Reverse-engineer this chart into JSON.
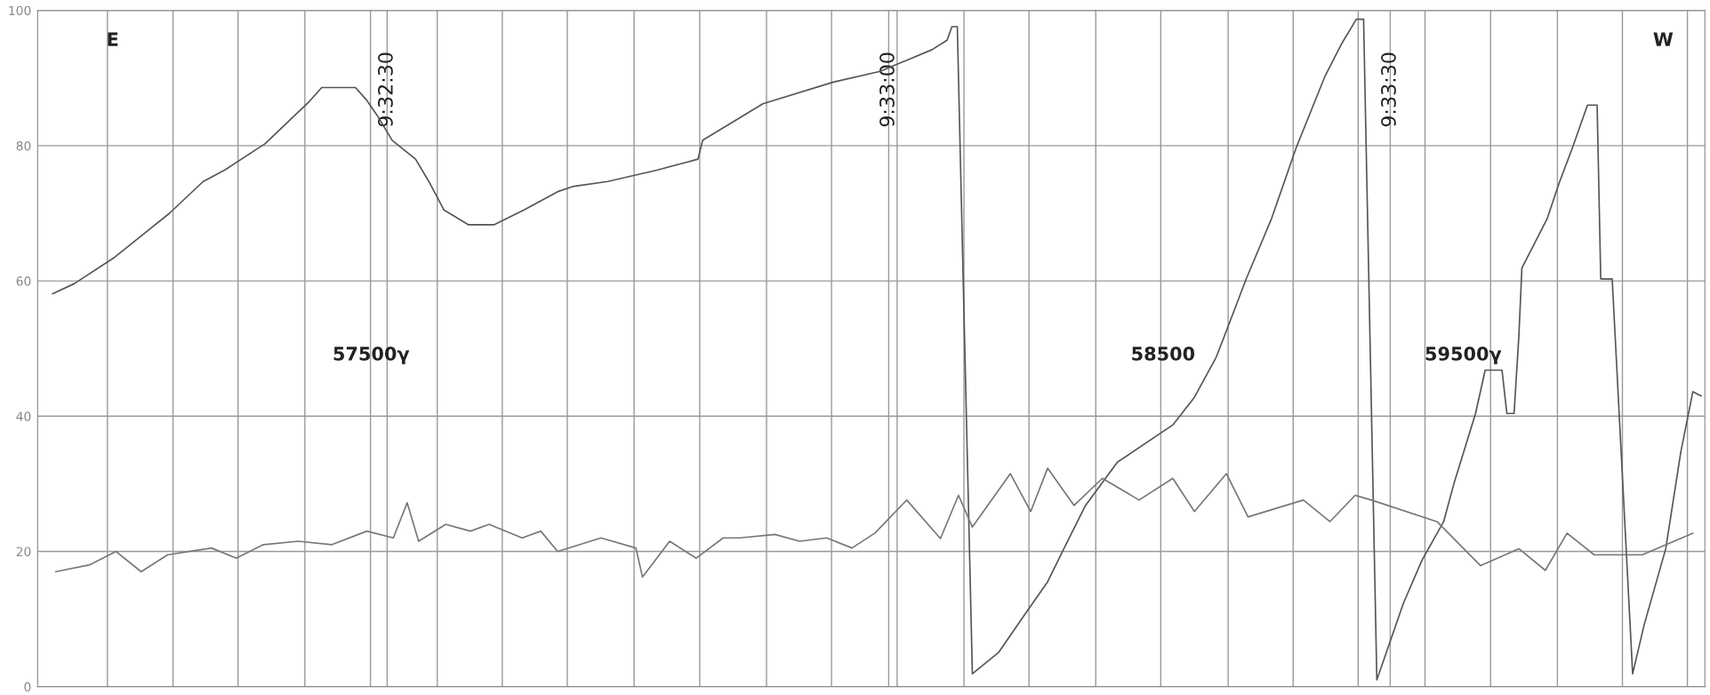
{
  "chart_data": {
    "type": "line",
    "xlim": [
      9.53586,
      9.56356
    ],
    "ylim": [
      0,
      100
    ],
    "xticks": [
      {
        "value": 9.53702,
        "label": null
      },
      {
        "value": 9.53811,
        "label": null
      },
      {
        "value": 9.53919,
        "label": null
      },
      {
        "value": 9.5403,
        "label": null
      },
      {
        "value": 9.54139,
        "label": null
      },
      {
        "value": 9.541667,
        "label": "9:32:30"
      },
      {
        "value": 9.5425,
        "label": null
      },
      {
        "value": 9.54358,
        "label": null
      },
      {
        "value": 9.54466,
        "label": null
      },
      {
        "value": 9.54577,
        "label": null
      },
      {
        "value": 9.54686,
        "label": null
      },
      {
        "value": 9.54797,
        "label": null
      },
      {
        "value": 9.54905,
        "label": null
      },
      {
        "value": 9.55,
        "label": "9:33:00"
      },
      {
        "value": 9.55014,
        "label": null
      },
      {
        "value": 9.55125,
        "label": null
      },
      {
        "value": 9.55233,
        "label": null
      },
      {
        "value": 9.55344,
        "label": null
      },
      {
        "value": 9.55452,
        "label": null
      },
      {
        "value": 9.55564,
        "label": null
      },
      {
        "value": 9.55672,
        "label": null
      },
      {
        "value": 9.5578,
        "label": null
      },
      {
        "value": 9.558333,
        "label": "9:33:30"
      },
      {
        "value": 9.55891,
        "label": null
      },
      {
        "value": 9.56,
        "label": null
      },
      {
        "value": 9.56111,
        "label": null
      },
      {
        "value": 9.56219,
        "label": null
      },
      {
        "value": 9.56327,
        "label": null
      }
    ],
    "yticks": [
      0,
      20,
      40,
      60,
      80,
      100
    ],
    "grid": true,
    "series": [
      {
        "color": "#555555",
        "x": [
          9.53611,
          9.53647,
          9.53714,
          9.53805,
          9.53861,
          9.53897,
          9.53964,
          9.54036,
          9.54058,
          9.54114,
          9.54133,
          9.5415,
          9.54175,
          9.54214,
          9.54236,
          9.54261,
          9.54302,
          9.54344,
          9.54394,
          9.5445,
          9.54477,
          9.54533,
          9.54616,
          9.54683,
          9.54691,
          9.54791,
          9.54908,
          9.54986,
          9.55072,
          9.55097,
          9.55105,
          9.55114,
          9.55139,
          9.55183,
          9.55227,
          9.55264,
          9.55291,
          9.55327,
          9.5538,
          9.55472,
          9.55508,
          9.55544,
          9.55558,
          9.55594,
          9.55636,
          9.55677,
          9.55725,
          9.55752,
          9.55777,
          9.55789,
          9.55811,
          9.55855,
          9.55886,
          9.55922,
          9.55939,
          9.55975,
          9.55991,
          9.56019,
          9.56027,
          9.56039,
          9.56047,
          9.56052,
          9.56094,
          9.56114,
          9.56136,
          9.56161,
          9.56177,
          9.56183,
          9.56202,
          9.56236,
          9.56255,
          9.56291,
          9.56316,
          9.56336,
          9.5635
        ],
        "values": [
          58.1,
          59.6,
          63.5,
          70.0,
          74.7,
          76.4,
          80.3,
          86.4,
          88.6,
          88.6,
          86.7,
          84.5,
          80.8,
          78.0,
          74.7,
          70.5,
          68.3,
          68.3,
          70.5,
          73.2,
          74.0,
          74.7,
          76.4,
          78.0,
          80.8,
          86.2,
          89.4,
          91.0,
          94.2,
          95.6,
          97.6,
          97.6,
          1.9,
          5.1,
          10.8,
          15.5,
          20.4,
          26.8,
          33.2,
          38.7,
          42.8,
          48.7,
          51.9,
          60.3,
          69.2,
          79.7,
          90.3,
          95.0,
          98.7,
          98.7,
          1.0,
          12.3,
          18.7,
          24.4,
          30.0,
          40.4,
          46.8,
          46.8,
          40.4,
          40.4,
          51.9,
          61.9,
          69.2,
          74.5,
          79.7,
          86.0,
          86.0,
          60.3,
          60.3,
          1.9,
          9.1,
          20.4,
          34.7,
          43.6,
          43.0
        ]
      },
      {
        "color": "#777777",
        "x": [
          9.53616,
          9.53672,
          9.53716,
          9.53758,
          9.53802,
          9.53875,
          9.53916,
          9.53961,
          9.54019,
          9.54075,
          9.54133,
          9.54177,
          9.542,
          9.54219,
          9.54264,
          9.54305,
          9.54336,
          9.54391,
          9.54422,
          9.5445,
          9.54522,
          9.5458,
          9.54591,
          9.54636,
          9.5468,
          9.54725,
          9.54752,
          9.54811,
          9.54852,
          9.54897,
          9.54939,
          9.54977,
          9.5503,
          9.55086,
          9.55116,
          9.55139,
          9.55202,
          9.55236,
          9.55264,
          9.55308,
          9.55355,
          9.55416,
          9.55472,
          9.55508,
          9.55561,
          9.55597,
          9.55689,
          9.55733,
          9.55775,
          9.55802,
          9.55911,
          9.55983,
          9.56047,
          9.56091,
          9.56127,
          9.56172,
          9.56252,
          9.56336
        ],
        "values": [
          17,
          18,
          20,
          17,
          19.5,
          20.5,
          19,
          21,
          21.5,
          21,
          23,
          22,
          27.2,
          21.5,
          24,
          23,
          24,
          22,
          23,
          20,
          22,
          20.5,
          16.2,
          21.5,
          19,
          22,
          22,
          22.5,
          21.5,
          22,
          20.5,
          22.7,
          27.6,
          21.9,
          28.3,
          23.6,
          31.5,
          25.9,
          32.3,
          26.8,
          30.8,
          27.6,
          30.8,
          25.9,
          31.5,
          25.1,
          27.6,
          24.4,
          28.3,
          27.6,
          24.4,
          17.9,
          20.4,
          17.2,
          22.7,
          19.5,
          19.5,
          22.7
        ]
      }
    ],
    "annotations": [
      "E",
      "W",
      "57500γ",
      "58500",
      "59500γ"
    ]
  }
}
